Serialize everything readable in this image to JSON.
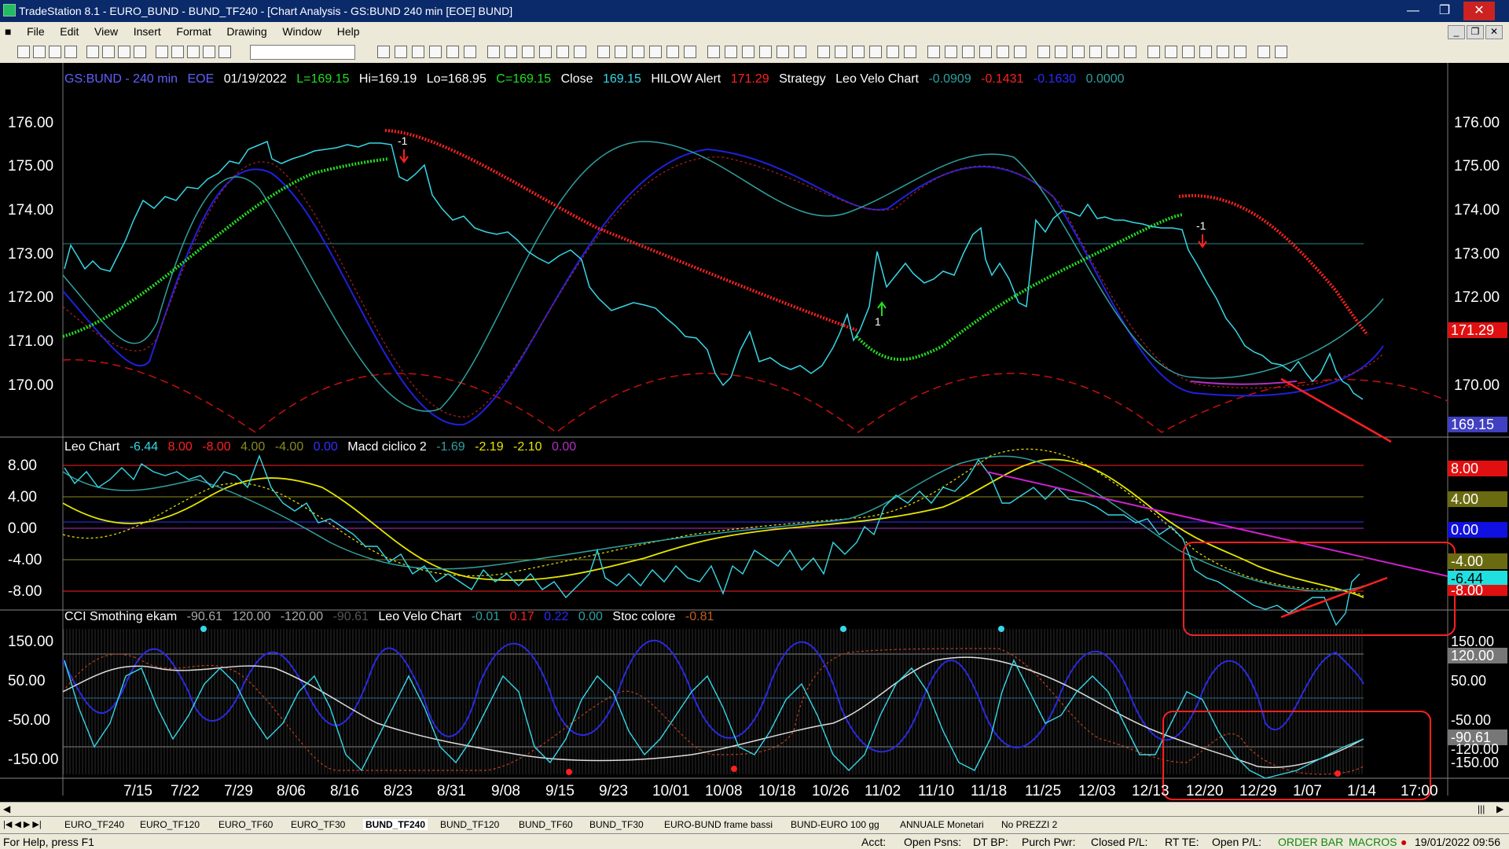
{
  "window": {
    "title": "TradeStation 8.1 - EURO_BUND - BUND_TF240 - [Chart Analysis - GS:BUND  240 min  [EOE] BUND]"
  },
  "menu": [
    "File",
    "Edit",
    "View",
    "Insert",
    "Format",
    "Drawing",
    "Window",
    "Help"
  ],
  "chart_header": {
    "symbol": "GS:BUND - 240 min",
    "session": "EOE",
    "date": "01/19/2022",
    "low": "L=169.15",
    "high": "Hi=169.19",
    "lo": "Lo=168.95",
    "close_c": "C=169.15",
    "close_label": "Close",
    "close_val": "169.15",
    "hilow_label": "HILOW Alert",
    "hilow_val": "171.29",
    "strategy": "Strategy",
    "leovelo_label": "Leo Velo Chart",
    "lv1": "-0.0909",
    "lv2": "-0.1431",
    "lv3": "-0.1630",
    "lv4": "0.0000"
  },
  "pane2_header": {
    "label": "Leo Chart",
    "v1": "-6.44",
    "v2": "8.00",
    "v3": "-8.00",
    "v4": "4.00",
    "v5": "-4.00",
    "v6": "0.00",
    "macd_label": "Macd ciclico 2",
    "m1": "-1.69",
    "m2": "-2.19",
    "m3": "-2.10",
    "m4": "0.00"
  },
  "pane3_header": {
    "label": "CCI Smothing ekam",
    "v1": "-90.61",
    "v2": "120.00",
    "v3": "-120.00",
    "v4": "-90.61",
    "lv_label": "Leo Velo Chart",
    "l1": "-0.01",
    "l2": "0.17",
    "l3": "0.22",
    "l4": "0.00",
    "stoc_label": "Stoc colore",
    "s1": "-0.81"
  },
  "price_axis": [
    "176.00",
    "175.00",
    "174.00",
    "173.00",
    "172.00",
    "171.00",
    "170.00"
  ],
  "pane2_axis": [
    "8.00",
    "4.00",
    "0.00",
    "-4.00",
    "-8.00"
  ],
  "pane3_axis": [
    "150.00",
    "50.00",
    "-50.00",
    "-150.00"
  ],
  "right_badges": {
    "hilow": "171.29",
    "last": "169.15",
    "p2_8": "8.00",
    "p2_4": "4.00",
    "p2_0": "0.00",
    "p2_m4": "-4.00",
    "p2_last": "-6.44",
    "p2_m8": "-8.00",
    "p3_150": "150.00",
    "p3_120": "120.00",
    "p3_50": "50.00",
    "p3_m50": "-50.00",
    "p3_last": "-90.61",
    "p3_m120": "-120.00",
    "p3_m150": "-150.00"
  },
  "signals": {
    "down1": "-1",
    "up1": "1",
    "down2": "-1"
  },
  "x_axis": [
    "7/15",
    "7/22",
    "7/29",
    "8/06",
    "8/16",
    "8/23",
    "8/31",
    "9/08",
    "9/15",
    "9/23",
    "10/01",
    "10/08",
    "10/18",
    "10/26",
    "11/02",
    "11/10",
    "11/18",
    "11/25",
    "12/03",
    "12/13",
    "12/20",
    "12/29",
    "1/07",
    "1/14",
    "17:00"
  ],
  "tabs": [
    "EURO_TF240",
    "EURO_TF120",
    "EURO_TF60",
    "EURO_TF30",
    "BUND_TF240",
    "BUND_TF120",
    "BUND_TF60",
    "BUND_TF30",
    "EURO-BUND frame bassi",
    "BUND-EURO 100 gg",
    "ANNUALE Monetari",
    "No PREZZI 2"
  ],
  "active_tab": "BUND_TF240",
  "status": {
    "help": "For Help, press F1",
    "acct": "Acct:",
    "open_psns": "Open Psns:",
    "dt_bp": "DT BP:",
    "purch_pwr": "Purch Pwr:",
    "closed_pl": "Closed P/L:",
    "rt_te": "RT TE:",
    "open_pl": "Open P/L:",
    "order_bar": "ORDER BAR",
    "macros": "MACROS",
    "datetime": "19/01/2022 09:56"
  },
  "colors": {
    "cyan": "#36d7e6",
    "red": "#ff2020",
    "green": "#22dd22",
    "blue": "#2a2aff",
    "yellow": "#e6e600",
    "magenta": "#d020d0",
    "teal": "#30a0a0"
  }
}
